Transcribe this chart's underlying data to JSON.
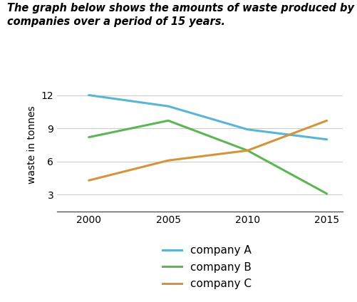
{
  "title_line1": "The graph below shows the amounts of waste produced by three",
  "title_line2": "companies over a period of 15 years.",
  "years": [
    2000,
    2005,
    2010,
    2015
  ],
  "company_A": [
    12.0,
    11.0,
    8.9,
    8.0
  ],
  "company_B": [
    8.2,
    9.7,
    7.0,
    3.1
  ],
  "company_C": [
    4.3,
    6.1,
    7.0,
    9.7
  ],
  "color_A": "#5ab4d6",
  "color_B": "#5db554",
  "color_C": "#d4943a",
  "ylabel": "waste in tonnes",
  "yticks": [
    3,
    6,
    9,
    12
  ],
  "xticks": [
    2000,
    2005,
    2010,
    2015
  ],
  "ylim": [
    1.5,
    13.5
  ],
  "xlim": [
    1998,
    2016
  ],
  "legend_labels": [
    "company A",
    "company B",
    "company C"
  ],
  "title_fontsize": 10.5,
  "axis_label_fontsize": 10,
  "tick_fontsize": 10,
  "legend_fontsize": 11,
  "line_width": 2.2
}
